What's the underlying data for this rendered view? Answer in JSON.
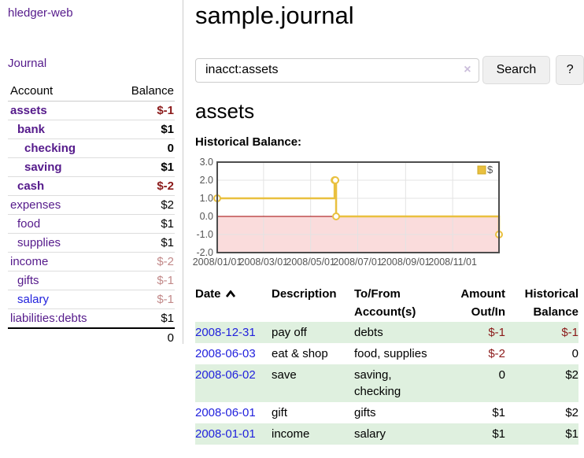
{
  "app": {
    "brand": "hledger-web",
    "nav_journal": "Journal"
  },
  "sidebar": {
    "accounts_header": {
      "account": "Account",
      "balance": "Balance"
    },
    "accounts": [
      {
        "name": "assets",
        "balance": "$-1",
        "indent": 0,
        "emph": true,
        "balance_tone": "neg-strong",
        "link_tone": "visited"
      },
      {
        "name": "bank",
        "balance": "$1",
        "indent": 1,
        "emph": true,
        "balance_tone": "pos",
        "link_tone": "visited"
      },
      {
        "name": "checking",
        "balance": "0",
        "indent": 2,
        "emph": true,
        "balance_tone": "pos",
        "link_tone": "visited"
      },
      {
        "name": "saving",
        "balance": "$1",
        "indent": 2,
        "emph": true,
        "balance_tone": "pos",
        "link_tone": "visited"
      },
      {
        "name": "cash",
        "balance": "$-2",
        "indent": 1,
        "emph": true,
        "balance_tone": "neg-strong",
        "link_tone": "visited"
      },
      {
        "name": "expenses",
        "balance": "$2",
        "indent": 0,
        "emph": false,
        "balance_tone": "pos",
        "link_tone": "visited"
      },
      {
        "name": "food",
        "balance": "$1",
        "indent": 1,
        "emph": false,
        "balance_tone": "pos",
        "link_tone": "visited"
      },
      {
        "name": "supplies",
        "balance": "$1",
        "indent": 1,
        "emph": false,
        "balance_tone": "pos",
        "link_tone": "visited"
      },
      {
        "name": "income",
        "balance": "$-2",
        "indent": 0,
        "emph": false,
        "balance_tone": "neg-muted",
        "link_tone": "visited"
      },
      {
        "name": "gifts",
        "balance": "$-1",
        "indent": 1,
        "emph": false,
        "balance_tone": "neg-muted",
        "link_tone": "visited"
      },
      {
        "name": "salary",
        "balance": "$-1",
        "indent": 1,
        "emph": false,
        "balance_tone": "neg-muted",
        "link_tone": "unvisited"
      },
      {
        "name": "liabilities:debts",
        "balance": "$1",
        "indent": 0,
        "emph": false,
        "balance_tone": "pos",
        "link_tone": "visited"
      }
    ],
    "total": "0"
  },
  "header": {
    "title": "sample.journal"
  },
  "search": {
    "value": "inacct:assets",
    "clear_icon": "×",
    "button": "Search",
    "help_button": "?"
  },
  "account_page": {
    "title": "assets",
    "chart_label": "Historical Balance:"
  },
  "chart_data": {
    "type": "line",
    "line_style": "steps",
    "x_range": [
      "2008-01-01",
      "2008-12-31"
    ],
    "y_range": [
      -2,
      3
    ],
    "y_tick_step": 1,
    "y_tick_labels": [
      "3.0",
      "2.0",
      "1.0",
      "0.0",
      "-1.0",
      "-2.0"
    ],
    "x_ticks": [
      {
        "date": "2008-01-01",
        "label": "2008/01/01"
      },
      {
        "date": "2008-03-01",
        "label": "2008/03/01"
      },
      {
        "date": "2008-05-01",
        "label": "2008/05/01"
      },
      {
        "date": "2008-07-01",
        "label": "2008/07/01"
      },
      {
        "date": "2008-09-01",
        "label": "2008/09/01"
      },
      {
        "date": "2008-11-01",
        "label": "2008/11/01"
      }
    ],
    "series": [
      {
        "name": "$",
        "points": [
          [
            "2008-01-01",
            1
          ],
          [
            "2008-06-01",
            2
          ],
          [
            "2008-06-02",
            2
          ],
          [
            "2008-06-03",
            0
          ],
          [
            "2008-12-31",
            -1
          ]
        ]
      }
    ],
    "legend": {
      "label": "$",
      "position": "top-right"
    },
    "grid": true,
    "colors": {
      "line": "#e9c03f",
      "marker_fill": "#ffffff",
      "negative_region": "#fadcdc",
      "zero_line": "#a00000",
      "grid": "#e3e3e3",
      "border": "#4d4d4d",
      "tick_text": "#545454"
    }
  },
  "register": {
    "columns": {
      "date": "Date",
      "sort_icon": "chevron-up-icon",
      "description": "Description",
      "accounts_line1": "To/From",
      "accounts_line2": "Account(s)",
      "amount_line1": "Amount",
      "amount_line2": "Out/In",
      "balance_line1": "Historical",
      "balance_line2": "Balance"
    },
    "rows": [
      {
        "date": "2008-12-31",
        "description": "pay off",
        "accounts": "debts",
        "amount": "$-1",
        "amount_tone": "neg",
        "balance": "$-1",
        "balance_tone": "neg"
      },
      {
        "date": "2008-06-03",
        "description": "eat & shop",
        "accounts": "food, supplies",
        "amount": "$-2",
        "amount_tone": "neg",
        "balance": "0",
        "balance_tone": "pos"
      },
      {
        "date": "2008-06-02",
        "description": "save",
        "accounts": "saving, checking",
        "amount": "0",
        "amount_tone": "pos",
        "balance": "$2",
        "balance_tone": "pos"
      },
      {
        "date": "2008-06-01",
        "description": "gift",
        "accounts": "gifts",
        "amount": "$1",
        "amount_tone": "pos",
        "balance": "$2",
        "balance_tone": "pos"
      },
      {
        "date": "2008-01-01",
        "description": "income",
        "accounts": "salary",
        "amount": "$1",
        "amount_tone": "pos",
        "balance": "$1",
        "balance_tone": "pos"
      }
    ]
  }
}
